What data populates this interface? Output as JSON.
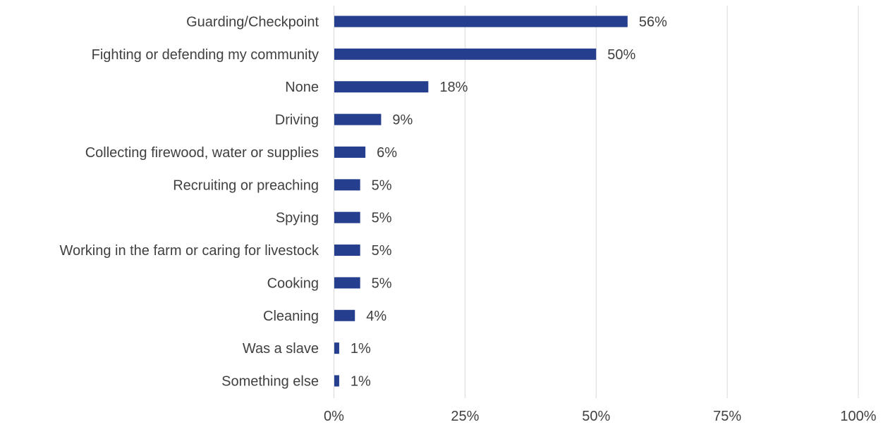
{
  "chart_data": {
    "type": "bar",
    "orientation": "horizontal",
    "title": "",
    "xlabel": "",
    "ylabel": "",
    "categories": [
      "Guarding/Checkpoint",
      "Fighting or defending my community",
      "None",
      "Driving",
      "Collecting firewood, water or supplies",
      "Recruiting or preaching",
      "Spying",
      "Working in the farm or caring for livestock",
      "Cooking",
      "Cleaning",
      "Was a slave",
      "Something else"
    ],
    "values": [
      56,
      50,
      18,
      9,
      6,
      5,
      5,
      5,
      5,
      4,
      1,
      1
    ],
    "data_labels": [
      "56%",
      "50%",
      "18%",
      "9%",
      "6%",
      "5%",
      "5%",
      "5%",
      "5%",
      "4%",
      "1%",
      "1%"
    ],
    "xlim": [
      0,
      100
    ],
    "x_ticks": [
      0,
      25,
      50,
      75,
      100
    ],
    "x_tick_labels": [
      "0%",
      "25%",
      "50%",
      "75%",
      "100%"
    ],
    "grid": "vertical",
    "legend": "none",
    "bar_color": "#253F8E",
    "gridline_color": "#D9D9D9",
    "text_color": "#404040"
  }
}
